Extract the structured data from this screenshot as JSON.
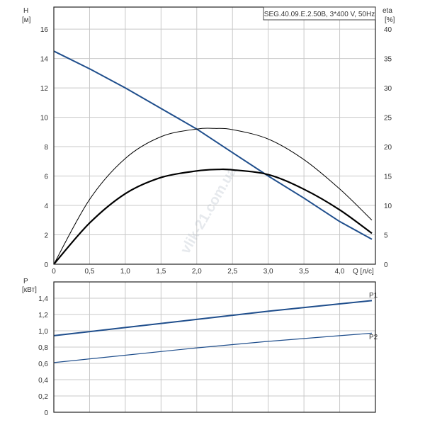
{
  "chart_data": [
    {
      "type": "line",
      "title": "SEG.40.09.E.2.50B, 3*400 V, 50Hz",
      "xlabel": "Q [л/с]",
      "ylabel_left": {
        "name": "H",
        "unit": "[м]"
      },
      "ylabel_right": {
        "name": "eta",
        "unit": "[%]"
      },
      "xlim": [
        0,
        4.5
      ],
      "ylim_left": [
        0,
        17.5
      ],
      "ylim_right": [
        0,
        43.75
      ],
      "x_ticks": [
        "0",
        "0,5",
        "1,0",
        "1,5",
        "2,0",
        "2,5",
        "3,0",
        "3,5",
        "4,0"
      ],
      "y_ticks_left": [
        "0",
        "2",
        "4",
        "6",
        "8",
        "10",
        "12",
        "14",
        "16"
      ],
      "y_ticks_right": [
        "0",
        "5",
        "10",
        "15",
        "20",
        "25",
        "30",
        "35",
        "40"
      ],
      "grid": true,
      "series": [
        {
          "color": "#1f4e8c",
          "axis": "left",
          "x": [
            0,
            0.5,
            1.0,
            1.5,
            2.0,
            2.5,
            3.0,
            3.5,
            4.0,
            4.45
          ],
          "values": [
            14.5,
            13.3,
            12.0,
            10.6,
            9.2,
            7.6,
            6.0,
            4.5,
            2.9,
            1.7
          ]
        },
        {
          "color": "#000000",
          "axis": "right",
          "x": [
            0,
            0.5,
            1.0,
            1.5,
            2.0,
            2.25,
            2.5,
            3.0,
            3.5,
            4.0,
            4.45
          ],
          "values": [
            0,
            11.0,
            18.0,
            21.7,
            23.0,
            23.1,
            22.9,
            21.3,
            17.8,
            12.8,
            7.5
          ]
        },
        {
          "color": "#000000",
          "axis": "left",
          "x": [
            0,
            0.5,
            1.0,
            1.5,
            2.0,
            2.3,
            2.5,
            3.0,
            3.5,
            4.0,
            4.45
          ],
          "values": [
            0,
            2.8,
            4.8,
            5.9,
            6.35,
            6.45,
            6.42,
            6.1,
            5.1,
            3.7,
            2.1
          ]
        }
      ]
    },
    {
      "type": "line",
      "xlabel": "",
      "ylabel": {
        "name": "P",
        "unit": "[кВт]"
      },
      "xlim": [
        0,
        4.5
      ],
      "ylim": [
        0,
        1.6
      ],
      "y_ticks": [
        "0",
        "0,2",
        "0,4",
        "0,6",
        "0,8",
        "1,0",
        "1,2",
        "1,4"
      ],
      "grid": true,
      "series": [
        {
          "name": "P1",
          "color": "#1f4e8c",
          "x": [
            0,
            1.0,
            2.0,
            3.0,
            4.0,
            4.45
          ],
          "values": [
            0.94,
            1.04,
            1.14,
            1.24,
            1.33,
            1.37
          ]
        },
        {
          "name": "P2",
          "color": "#1f4e8c",
          "x": [
            0,
            1.0,
            2.0,
            3.0,
            4.0,
            4.45
          ],
          "values": [
            0.61,
            0.7,
            0.79,
            0.87,
            0.94,
            0.97
          ]
        }
      ]
    }
  ],
  "watermark": "vlik-21.com.ua"
}
